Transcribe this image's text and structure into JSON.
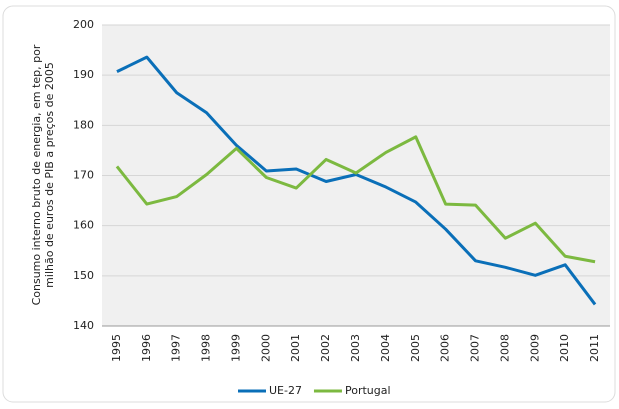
{
  "chart_data": {
    "type": "line",
    "ylabel": [
      "Consumo interno bruto de energia, em tep, por",
      "milhão de euros de PIB a preços de 2005"
    ],
    "categories": [
      "1995",
      "1996",
      "1997",
      "1998",
      "1999",
      "2000",
      "2001",
      "2002",
      "2003",
      "2004",
      "2005",
      "2006",
      "2007",
      "2008",
      "2009",
      "2010",
      "2011"
    ],
    "series": [
      {
        "name": "UE-27",
        "color": "#0a6fb8",
        "values": [
          190.7,
          193.6,
          186.5,
          182.5,
          176,
          170.9,
          171.3,
          168.8,
          170.2,
          167.7,
          164.7,
          159.3,
          153,
          151.7,
          150.1,
          152.2,
          144.3
        ]
      },
      {
        "name": "Portugal",
        "color": "#7cb940",
        "values": [
          171.8,
          164.3,
          165.8,
          170.2,
          175.4,
          169.6,
          167.5,
          173.2,
          170.5,
          174.6,
          177.7,
          164.3,
          164.1,
          157.5,
          160.5,
          153.9,
          152.8
        ]
      }
    ],
    "ylim": [
      140,
      200
    ],
    "yticks": [
      140,
      150,
      160,
      170,
      180,
      190,
      200
    ],
    "grid": true,
    "legend": "bottom"
  }
}
